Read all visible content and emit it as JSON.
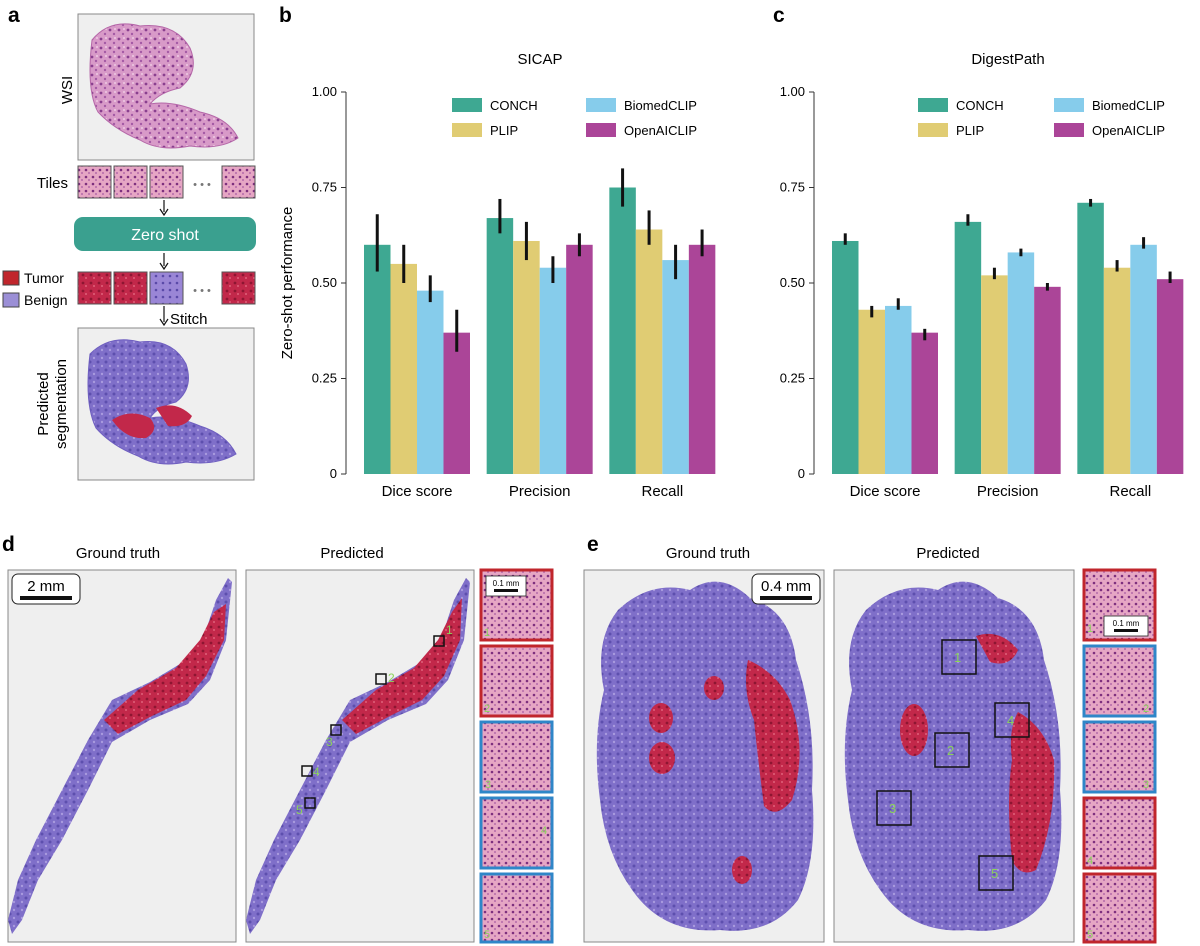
{
  "panel_labels": {
    "a": "a",
    "b": "b",
    "c": "c",
    "d": "d",
    "e": "e"
  },
  "workflow": {
    "wsi_label": "WSI",
    "tiles_label": "Tiles",
    "zero_shot_label": "Zero shot",
    "stitch_label": "Stitch",
    "legend": [
      {
        "label": "Tumor",
        "color": "#c0262c"
      },
      {
        "label": "Benign",
        "color": "#9b8fd6"
      }
    ],
    "predicted_label_line1": "Predicted",
    "predicted_label_line2": "segmentation",
    "ellipsis": "• • •",
    "box_color": "#3aa08f"
  },
  "series_colors": {
    "CONCH": "#3ea892",
    "PLIP": "#e0cc73",
    "BiomedCLIP": "#86cceb",
    "OpenAICLIP": "#ab4598"
  },
  "chart_data": [
    {
      "type": "bar",
      "title": "SICAP",
      "ylabel": "Zero-shot performance",
      "xlabel": "",
      "ylim": [
        0,
        1
      ],
      "yticks": [
        "0",
        "0.25",
        "0.50",
        "0.75",
        "1.00"
      ],
      "categories": [
        "Dice score",
        "Precision",
        "Recall"
      ],
      "legend_position": "top-right",
      "series": [
        {
          "name": "CONCH",
          "values": [
            0.6,
            0.67,
            0.75
          ],
          "err_low": [
            0.53,
            0.63,
            0.7
          ],
          "err_high": [
            0.68,
            0.72,
            0.8
          ]
        },
        {
          "name": "PLIP",
          "values": [
            0.55,
            0.61,
            0.64
          ],
          "err_low": [
            0.5,
            0.56,
            0.6
          ],
          "err_high": [
            0.6,
            0.66,
            0.69
          ]
        },
        {
          "name": "BiomedCLIP",
          "values": [
            0.48,
            0.54,
            0.56
          ],
          "err_low": [
            0.45,
            0.5,
            0.51
          ],
          "err_high": [
            0.52,
            0.57,
            0.6
          ]
        },
        {
          "name": "OpenAICLIP",
          "values": [
            0.37,
            0.6,
            0.6
          ],
          "err_low": [
            0.32,
            0.57,
            0.57
          ],
          "err_high": [
            0.43,
            0.63,
            0.64
          ]
        }
      ]
    },
    {
      "type": "bar",
      "title": "DigestPath",
      "ylabel": "",
      "xlabel": "",
      "ylim": [
        0,
        1
      ],
      "yticks": [
        "0",
        "0.25",
        "0.50",
        "0.75",
        "1.00"
      ],
      "categories": [
        "Dice score",
        "Precision",
        "Recall"
      ],
      "legend_position": "top-right",
      "series": [
        {
          "name": "CONCH",
          "values": [
            0.61,
            0.66,
            0.71
          ],
          "err_low": [
            0.6,
            0.65,
            0.7
          ],
          "err_high": [
            0.63,
            0.68,
            0.72
          ]
        },
        {
          "name": "PLIP",
          "values": [
            0.43,
            0.52,
            0.54
          ],
          "err_low": [
            0.41,
            0.51,
            0.53
          ],
          "err_high": [
            0.44,
            0.54,
            0.56
          ]
        },
        {
          "name": "BiomedCLIP",
          "values": [
            0.44,
            0.58,
            0.6
          ],
          "err_low": [
            0.43,
            0.57,
            0.59
          ],
          "err_high": [
            0.46,
            0.59,
            0.62
          ]
        },
        {
          "name": "OpenAICLIP",
          "values": [
            0.37,
            0.49,
            0.51
          ],
          "err_low": [
            0.35,
            0.48,
            0.5
          ],
          "err_high": [
            0.38,
            0.5,
            0.53
          ]
        }
      ]
    }
  ],
  "panel_d": {
    "ground_truth_label": "Ground truth",
    "predicted_label": "Predicted",
    "scale_label": "2 mm",
    "inset_scale_label": "0.1 mm",
    "box_numbers": [
      "1",
      "2",
      "3",
      "4",
      "5"
    ],
    "inset_border_colors": [
      "#c0262c",
      "#c0262c",
      "#2f86c8",
      "#2f86c8",
      "#2f86c8"
    ]
  },
  "panel_e": {
    "ground_truth_label": "Ground truth",
    "predicted_label": "Predicted",
    "scale_label": "0.4 mm",
    "inset_scale_label": "0.1 mm",
    "box_numbers": [
      "1",
      "2",
      "3",
      "4",
      "5"
    ],
    "inset_border_colors": [
      "#c0262c",
      "#2f86c8",
      "#2f86c8",
      "#c0262c",
      "#c0262c"
    ]
  }
}
